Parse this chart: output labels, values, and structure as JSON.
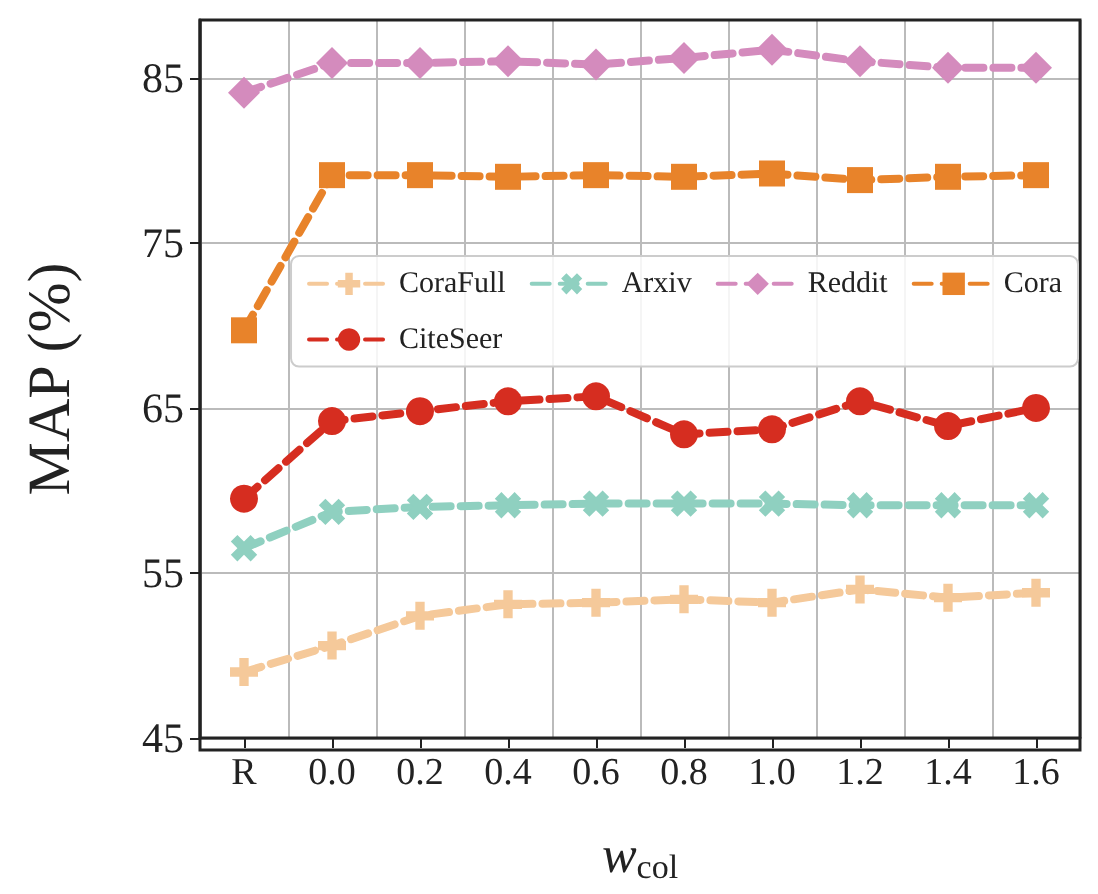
{
  "chart_data": {
    "type": "line",
    "xlabel": "w$_{col}$",
    "ylabel": "MAP (%)",
    "categories": [
      "R",
      "0.0",
      "0.2",
      "0.4",
      "0.6",
      "0.8",
      "1.0",
      "1.2",
      "1.4",
      "1.6"
    ],
    "series": [
      {
        "name": "CoraFull",
        "color": "#f5c99a",
        "marker": "cross",
        "values": [
          49.0,
          50.6,
          52.4,
          53.1,
          53.2,
          53.4,
          53.2,
          54.0,
          53.5,
          53.8
        ]
      },
      {
        "name": "Cora",
        "color": "#e8832a",
        "marker": "square",
        "values": [
          69.7,
          79.1,
          79.1,
          79.0,
          79.1,
          79.0,
          79.2,
          78.8,
          79.0,
          79.1
        ]
      },
      {
        "name": "Arxiv",
        "color": "#8fd0c0",
        "marker": "cross",
        "values": [
          56.5,
          58.7,
          59.0,
          59.1,
          59.2,
          59.2,
          59.2,
          59.1,
          59.1,
          59.1
        ]
      },
      {
        "name": "CiteSeer",
        "color": "#d62d20",
        "marker": "circle",
        "values": [
          59.5,
          64.2,
          64.8,
          65.4,
          65.7,
          63.4,
          63.7,
          65.4,
          63.9,
          65.0
        ]
      },
      {
        "name": "Reddit",
        "color": "#d48bbd",
        "marker": "diamond",
        "values": [
          84.1,
          85.9,
          85.9,
          86.0,
          85.8,
          86.2,
          86.7,
          86.0,
          85.6,
          85.6
        ]
      }
    ],
    "ylim": [
      45,
      88.5
    ],
    "yticks": [
      45,
      55,
      65,
      75,
      85
    ],
    "line_style": "dashed",
    "grid": true,
    "legend": "right"
  }
}
